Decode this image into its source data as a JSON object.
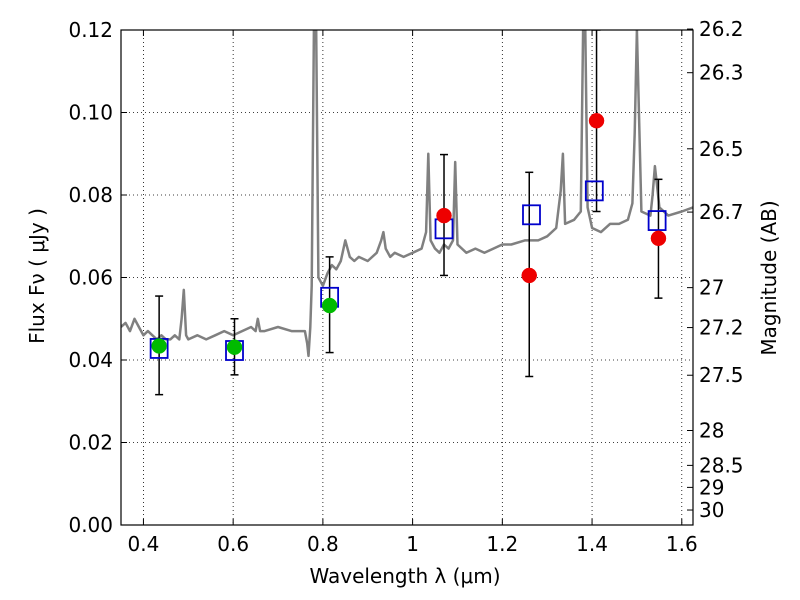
{
  "chart_data": {
    "type": "scatter",
    "xlabel": "Wavelength  λ (μm)",
    "ylabel": "Flux  Fν  ( μJy )",
    "y2label": "Magnitude (AB)",
    "xlim": [
      0.35,
      1.625
    ],
    "ylim": [
      0.0,
      0.12
    ],
    "grid": true,
    "x_ticks": [
      0.4,
      0.6,
      0.8,
      1.0,
      1.2,
      1.4,
      1.6
    ],
    "x_tick_labels": [
      "0.4",
      "0.6",
      "0.8",
      "1",
      "1.2",
      "1.4",
      "1.6"
    ],
    "y_ticks": [
      0.0,
      0.02,
      0.04,
      0.06,
      0.08,
      0.1,
      0.12
    ],
    "y_tick_labels": [
      "0.00",
      "0.02",
      "0.04",
      "0.06",
      "0.08",
      "0.10",
      "0.12"
    ],
    "y2_ticks": [
      {
        "label": "26.2",
        "mag": 26.2
      },
      {
        "label": "26.3",
        "mag": 26.3
      },
      {
        "label": "26.5",
        "mag": 26.5
      },
      {
        "label": "26.7",
        "mag": 26.7
      },
      {
        "label": "27",
        "mag": 27.0
      },
      {
        "label": "27.2",
        "mag": 27.2
      },
      {
        "label": "27.5",
        "mag": 27.5
      },
      {
        "label": "28",
        "mag": 28.0
      },
      {
        "label": "28.5",
        "mag": 28.5
      },
      {
        "label": "29",
        "mag": 29.0
      },
      {
        "label": "30",
        "mag": 30.0
      }
    ],
    "colors": {
      "spectrum": "#808080",
      "model_box": "#0000cc",
      "obs_green": "#00bb00",
      "obs_red": "#ee0000",
      "errorbar": "#000000"
    },
    "spectrum": {
      "x": [
        0.35,
        0.36,
        0.37,
        0.38,
        0.39,
        0.4,
        0.41,
        0.42,
        0.43,
        0.44,
        0.45,
        0.46,
        0.47,
        0.48,
        0.485,
        0.49,
        0.495,
        0.5,
        0.52,
        0.54,
        0.56,
        0.58,
        0.6,
        0.62,
        0.64,
        0.65,
        0.655,
        0.66,
        0.67,
        0.7,
        0.73,
        0.76,
        0.765,
        0.768,
        0.772,
        0.775,
        0.78,
        0.785,
        0.79,
        0.8,
        0.81,
        0.82,
        0.83,
        0.84,
        0.85,
        0.86,
        0.87,
        0.88,
        0.9,
        0.92,
        0.93,
        0.935,
        0.94,
        0.95,
        0.96,
        0.98,
        1.0,
        1.02,
        1.03,
        1.035,
        1.04,
        1.05,
        1.06,
        1.07,
        1.08,
        1.09,
        1.095,
        1.1,
        1.12,
        1.14,
        1.16,
        1.18,
        1.2,
        1.22,
        1.25,
        1.28,
        1.3,
        1.32,
        1.33,
        1.335,
        1.34,
        1.36,
        1.375,
        1.38,
        1.385,
        1.39,
        1.4,
        1.42,
        1.44,
        1.46,
        1.48,
        1.49,
        1.495,
        1.5,
        1.51,
        1.53,
        1.535,
        1.54,
        1.55,
        1.57,
        1.6,
        1.625
      ],
      "y": [
        0.048,
        0.049,
        0.047,
        0.05,
        0.048,
        0.046,
        0.047,
        0.046,
        0.045,
        0.046,
        0.045,
        0.045,
        0.046,
        0.045,
        0.05,
        0.057,
        0.046,
        0.045,
        0.046,
        0.045,
        0.046,
        0.047,
        0.046,
        0.047,
        0.048,
        0.047,
        0.05,
        0.047,
        0.047,
        0.048,
        0.047,
        0.047,
        0.044,
        0.041,
        0.048,
        0.058,
        0.12,
        0.12,
        0.06,
        0.058,
        0.061,
        0.063,
        0.062,
        0.064,
        0.069,
        0.065,
        0.064,
        0.065,
        0.064,
        0.066,
        0.069,
        0.071,
        0.067,
        0.065,
        0.066,
        0.065,
        0.066,
        0.067,
        0.071,
        0.09,
        0.069,
        0.067,
        0.066,
        0.068,
        0.067,
        0.069,
        0.088,
        0.068,
        0.066,
        0.067,
        0.066,
        0.067,
        0.068,
        0.068,
        0.069,
        0.069,
        0.07,
        0.072,
        0.081,
        0.09,
        0.073,
        0.074,
        0.076,
        0.12,
        0.12,
        0.077,
        0.072,
        0.071,
        0.073,
        0.073,
        0.074,
        0.078,
        0.095,
        0.12,
        0.076,
        0.075,
        0.08,
        0.087,
        0.077,
        0.075,
        0.076,
        0.077
      ]
    },
    "series": [
      {
        "marker": "square",
        "color": "#0000cc",
        "x": [
          0.435,
          0.603,
          0.815,
          1.07,
          1.265,
          1.405,
          1.545
        ],
        "y": [
          0.0428,
          0.0423,
          0.0552,
          0.0718,
          0.0752,
          0.081,
          0.0738
        ]
      },
      {
        "marker": "circle",
        "color": "#00bb00",
        "x": [
          0.435,
          0.603,
          0.815
        ],
        "y": [
          0.0434,
          0.0431,
          0.0532
        ],
        "err_low": [
          0.0118,
          0.0067,
          0.0114
        ],
        "err_high": [
          0.0121,
          0.0069,
          0.0118
        ]
      },
      {
        "marker": "circle",
        "color": "#ee0000",
        "x": [
          1.07,
          1.26,
          1.41,
          1.548
        ],
        "y": [
          0.075,
          0.0605,
          0.098,
          0.0695
        ],
        "err_low": [
          0.0145,
          0.0245,
          0.022,
          0.0145
        ],
        "err_high": [
          0.0148,
          0.025,
          0.022,
          0.0143
        ]
      }
    ]
  }
}
